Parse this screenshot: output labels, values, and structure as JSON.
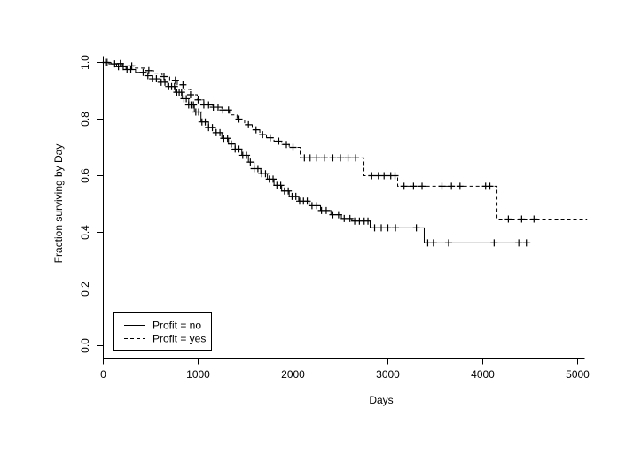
{
  "figure": {
    "background": "#ffffff",
    "line_color": "#000000",
    "text_color": "#000000"
  },
  "chart_data": {
    "type": "line",
    "subtype": "kaplan-meier-survival-step",
    "title": "",
    "xlabel": "Days",
    "ylabel": "Fraction surviving by Day",
    "xlim": [
      0,
      5150
    ],
    "ylim": [
      0,
      1.0
    ],
    "grid": false,
    "x_ticks": {
      "values": [
        0,
        1000,
        2000,
        3000,
        4000,
        5000
      ],
      "labels": [
        "0",
        "1000",
        "2000",
        "3000",
        "4000",
        "5000"
      ]
    },
    "y_ticks": {
      "values": [
        0.0,
        0.2,
        0.4,
        0.6,
        0.8,
        1.0
      ],
      "labels": [
        "0.0",
        "0.2",
        "0.4",
        "0.6",
        "0.8",
        "1.0"
      ]
    },
    "legend": {
      "position": "bottom-left",
      "items": [
        {
          "label": "Profit = no",
          "line_style": "solid"
        },
        {
          "label": "Profit = yes",
          "line_style": "dashed"
        }
      ]
    },
    "series": [
      {
        "name": "Profit = no",
        "line_style": "solid",
        "color": "#000000",
        "end_day": 4505,
        "steps": [
          [
            0,
            1.0
          ],
          [
            60,
            0.995
          ],
          [
            140,
            0.985
          ],
          [
            240,
            0.975
          ],
          [
            340,
            0.965
          ],
          [
            440,
            0.953
          ],
          [
            520,
            0.942
          ],
          [
            600,
            0.93
          ],
          [
            680,
            0.915
          ],
          [
            760,
            0.895
          ],
          [
            830,
            0.872
          ],
          [
            900,
            0.85
          ],
          [
            960,
            0.825
          ],
          [
            1030,
            0.79
          ],
          [
            1110,
            0.77
          ],
          [
            1180,
            0.752
          ],
          [
            1250,
            0.732
          ],
          [
            1320,
            0.712
          ],
          [
            1390,
            0.694
          ],
          [
            1460,
            0.672
          ],
          [
            1530,
            0.648
          ],
          [
            1590,
            0.625
          ],
          [
            1660,
            0.607
          ],
          [
            1730,
            0.588
          ],
          [
            1800,
            0.566
          ],
          [
            1880,
            0.546
          ],
          [
            1960,
            0.527
          ],
          [
            2060,
            0.51
          ],
          [
            2170,
            0.494
          ],
          [
            2290,
            0.477
          ],
          [
            2400,
            0.462
          ],
          [
            2510,
            0.449
          ],
          [
            2620,
            0.44
          ],
          [
            2813,
            0.416
          ],
          [
            3383,
            0.363
          ]
        ],
        "censor_days": [
          25,
          120,
          160,
          210,
          250,
          290,
          420,
          470,
          520,
          560,
          610,
          650,
          690,
          720,
          750,
          775,
          800,
          825,
          850,
          875,
          900,
          925,
          950,
          975,
          1005,
          1040,
          1075,
          1110,
          1150,
          1190,
          1230,
          1270,
          1310,
          1350,
          1390,
          1430,
          1470,
          1510,
          1550,
          1590,
          1630,
          1670,
          1710,
          1750,
          1790,
          1830,
          1870,
          1910,
          1950,
          1990,
          2030,
          2070,
          2110,
          2150,
          2200,
          2250,
          2300,
          2350,
          2420,
          2480,
          2540,
          2600,
          2650,
          2700,
          2750,
          2790,
          2860,
          2930,
          3000,
          3080,
          3300,
          3420,
          3480,
          3640,
          4120,
          4380,
          4460
        ]
      },
      {
        "name": "Profit = yes",
        "line_style": "dashed",
        "color": "#000000",
        "end_day": 5100,
        "steps": [
          [
            0,
            1.0
          ],
          [
            80,
            0.996
          ],
          [
            200,
            0.988
          ],
          [
            320,
            0.98
          ],
          [
            430,
            0.971
          ],
          [
            530,
            0.962
          ],
          [
            620,
            0.95
          ],
          [
            700,
            0.937
          ],
          [
            780,
            0.921
          ],
          [
            850,
            0.905
          ],
          [
            920,
            0.886
          ],
          [
            990,
            0.868
          ],
          [
            1060,
            0.85
          ],
          [
            1150,
            0.842
          ],
          [
            1250,
            0.832
          ],
          [
            1330,
            0.815
          ],
          [
            1410,
            0.8
          ],
          [
            1490,
            0.78
          ],
          [
            1570,
            0.762
          ],
          [
            1650,
            0.745
          ],
          [
            1720,
            0.734
          ],
          [
            1800,
            0.722
          ],
          [
            1880,
            0.71
          ],
          [
            1960,
            0.7
          ],
          [
            2075,
            0.663
          ],
          [
            2748,
            0.6
          ],
          [
            3103,
            0.563
          ],
          [
            4150,
            0.447
          ]
        ],
        "censor_days": [
          40,
          180,
          300,
          480,
          640,
          760,
          840,
          920,
          1000,
          1060,
          1110,
          1160,
          1210,
          1260,
          1320,
          1430,
          1530,
          1610,
          1680,
          1760,
          1850,
          1930,
          2000,
          2120,
          2180,
          2250,
          2330,
          2420,
          2500,
          2580,
          2660,
          2830,
          2900,
          2960,
          3030,
          3075,
          3170,
          3270,
          3360,
          3570,
          3670,
          3760,
          4030,
          4075,
          4270,
          4410,
          4540
        ]
      }
    ]
  }
}
